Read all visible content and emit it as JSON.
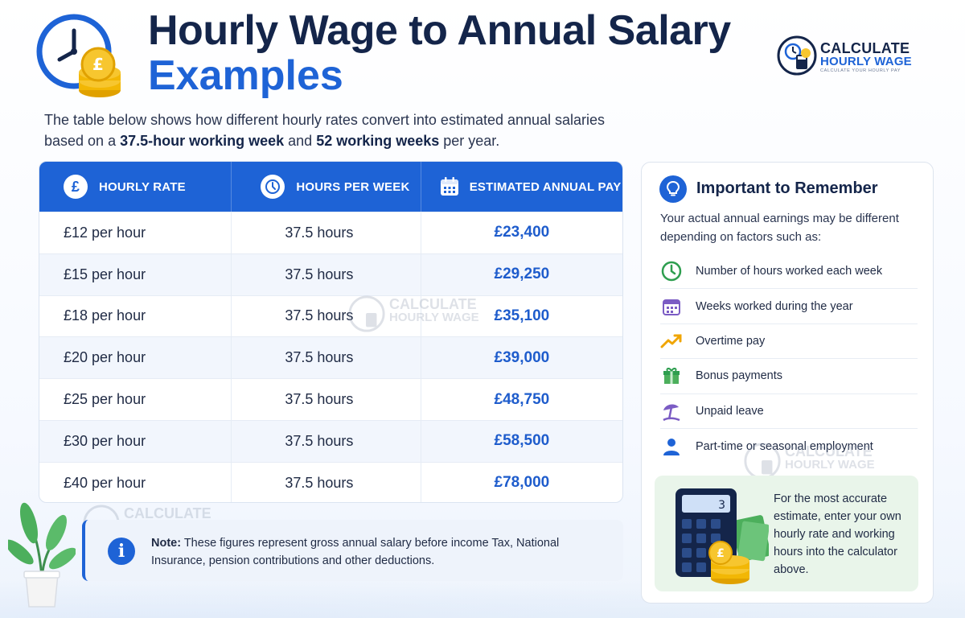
{
  "header": {
    "title_line1": "Hourly Wage to Annual Salary",
    "title_line2": "Examples",
    "icon": "clock-with-coins-icon"
  },
  "brand": {
    "name_line1": "CALCULATE",
    "name_line2": "HOURLY WAGE",
    "tagline": "CALCULATE YOUR HOURLY PAY"
  },
  "intro": {
    "text_a": "The table below shows how different hourly rates convert into estimated annual salaries based on a ",
    "bold_hours": "37.5-hour working week",
    "text_b": " and ",
    "bold_weeks": "52 working weeks",
    "text_c": " per year."
  },
  "table": {
    "headers": {
      "rate": "HOURLY RATE",
      "hours": "HOURS PER WEEK",
      "annual": "ESTIMATED ANNUAL PAY"
    },
    "rows": [
      {
        "rate": "£12 per hour",
        "hours": "37.5 hours",
        "annual": "£23,400"
      },
      {
        "rate": "£15 per hour",
        "hours": "37.5 hours",
        "annual": "£29,250"
      },
      {
        "rate": "£18 per hour",
        "hours": "37.5 hours",
        "annual": "£35,100"
      },
      {
        "rate": "£20 per hour",
        "hours": "37.5 hours",
        "annual": "£39,000"
      },
      {
        "rate": "£25 per hour",
        "hours": "37.5 hours",
        "annual": "£48,750"
      },
      {
        "rate": "£30 per hour",
        "hours": "37.5 hours",
        "annual": "£58,500"
      },
      {
        "rate": "£40 per hour",
        "hours": "37.5 hours",
        "annual": "£78,000"
      }
    ]
  },
  "note": {
    "label": "Note:",
    "text": " These figures represent gross annual salary before income Tax, National Insurance, pension contributions and other deductions."
  },
  "panel": {
    "heading": "Important to Remember",
    "description": "Your actual annual earnings may be different depending on factors such as:",
    "factors": [
      {
        "label": "Number of hours worked each week",
        "icon": "clock-icon",
        "color": "#2e9e4f"
      },
      {
        "label": "Weeks worked during the year",
        "icon": "calendar-icon",
        "color": "#7b5cc4"
      },
      {
        "label": "Overtime pay",
        "icon": "trend-up-icon",
        "color": "#f0a500"
      },
      {
        "label": "Bonus payments",
        "icon": "gift-icon",
        "color": "#2e9e4f"
      },
      {
        "label": "Unpaid leave",
        "icon": "beach-umbrella-icon",
        "color": "#7b5cc4"
      },
      {
        "label": "Part-time or seasonal employment",
        "icon": "person-icon",
        "color": "#1e63d6"
      }
    ],
    "tip": "For the most accurate estimate, enter your own hourly rate and working hours into the calculator above.",
    "calculator_display": "3"
  },
  "colors": {
    "accent": "#1e63d6",
    "navy": "#14254a",
    "tip_bg": "#e9f5ea"
  }
}
